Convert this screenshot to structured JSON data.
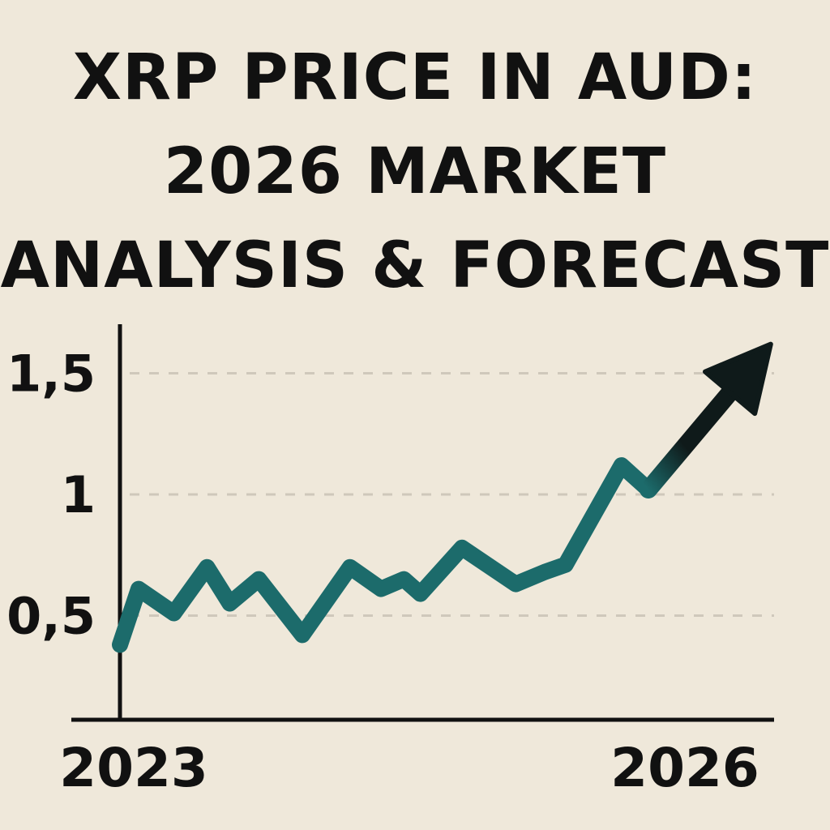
{
  "title": {
    "line1": "XRP PRICE IN AUD:",
    "line2": "2026 MARKET",
    "line3": "ANALYSIS & FORECAST"
  },
  "colors": {
    "background": "#efe8da",
    "line": "#1c6b6b",
    "arrow": "#0f1a1a",
    "axis": "#111111",
    "grid": "#cfc8bb"
  },
  "chart_data": {
    "type": "line",
    "title": "XRP PRICE IN AUD: 2026 MARKET ANALYSIS & FORECAST",
    "xlabel": "",
    "ylabel": "",
    "xlim": [
      2023,
      2026.15
    ],
    "ylim": [
      0,
      1.8
    ],
    "x_ticks": [
      {
        "value": 2023,
        "label": "2023"
      },
      {
        "value": 2026,
        "label": "2026"
      }
    ],
    "y_ticks": [
      {
        "value": 0.5,
        "label": "0,5"
      },
      {
        "value": 1.0,
        "label": "1"
      },
      {
        "value": 1.5,
        "label": "1,5"
      }
    ],
    "grid": "horizontal dashed",
    "series": [
      {
        "values": [
          {
            "x": 2023.0,
            "y": 0.38
          },
          {
            "x": 2023.09,
            "y": 0.61
          },
          {
            "x": 2023.26,
            "y": 0.51
          },
          {
            "x": 2023.42,
            "y": 0.7
          },
          {
            "x": 2023.53,
            "y": 0.55
          },
          {
            "x": 2023.67,
            "y": 0.65
          },
          {
            "x": 2023.88,
            "y": 0.42
          },
          {
            "x": 2024.11,
            "y": 0.7
          },
          {
            "x": 2024.26,
            "y": 0.61
          },
          {
            "x": 2024.37,
            "y": 0.65
          },
          {
            "x": 2024.45,
            "y": 0.59
          },
          {
            "x": 2024.65,
            "y": 0.78
          },
          {
            "x": 2024.91,
            "y": 0.63
          },
          {
            "x": 2025.05,
            "y": 0.68
          },
          {
            "x": 2025.15,
            "y": 0.71
          },
          {
            "x": 2025.42,
            "y": 1.12
          },
          {
            "x": 2025.55,
            "y": 1.02
          }
        ]
      }
    ],
    "forecast_arrow": {
      "from": {
        "x": 2025.55,
        "y": 1.02
      },
      "to": {
        "x": 2026.14,
        "y": 1.62
      }
    }
  }
}
